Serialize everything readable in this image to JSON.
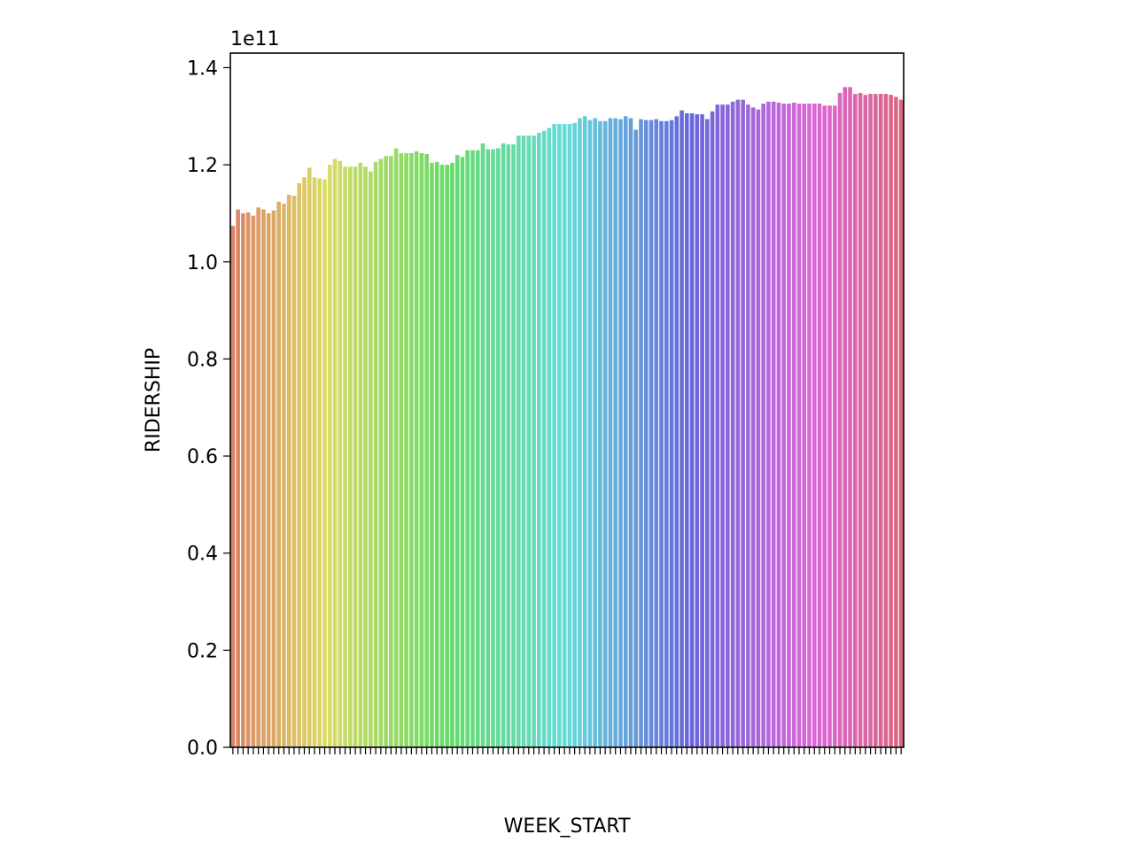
{
  "chart_data": {
    "type": "bar",
    "xlabel": "WEEK_START",
    "ylabel": "RIDERSHIP",
    "offset_text": "1e11",
    "ylim": [
      0,
      1.43
    ],
    "yticks": [
      0.0,
      0.2,
      0.4,
      0.6,
      0.8,
      1.0,
      1.2,
      1.4
    ],
    "ytick_labels": [
      "0.0",
      "0.2",
      "0.4",
      "0.6",
      "0.8",
      "1.0",
      "1.2",
      "1.4"
    ],
    "grid": false,
    "legend": "none",
    "palette": "husl",
    "values": [
      1.074,
      1.108,
      1.1,
      1.102,
      1.095,
      1.112,
      1.108,
      1.1,
      1.106,
      1.124,
      1.12,
      1.138,
      1.136,
      1.162,
      1.174,
      1.194,
      1.174,
      1.172,
      1.17,
      1.2,
      1.212,
      1.208,
      1.196,
      1.196,
      1.196,
      1.204,
      1.196,
      1.186,
      1.206,
      1.212,
      1.218,
      1.218,
      1.234,
      1.224,
      1.224,
      1.224,
      1.228,
      1.224,
      1.222,
      1.204,
      1.206,
      1.2,
      1.2,
      1.204,
      1.22,
      1.216,
      1.23,
      1.23,
      1.23,
      1.244,
      1.232,
      1.232,
      1.234,
      1.244,
      1.242,
      1.242,
      1.26,
      1.26,
      1.26,
      1.26,
      1.266,
      1.27,
      1.276,
      1.284,
      1.284,
      1.284,
      1.284,
      1.286,
      1.296,
      1.3,
      1.292,
      1.296,
      1.29,
      1.29,
      1.296,
      1.296,
      1.294,
      1.3,
      1.296,
      1.272,
      1.294,
      1.292,
      1.292,
      1.294,
      1.29,
      1.29,
      1.292,
      1.3,
      1.312,
      1.306,
      1.306,
      1.304,
      1.304,
      1.294,
      1.31,
      1.324,
      1.324,
      1.324,
      1.33,
      1.334,
      1.334,
      1.324,
      1.318,
      1.314,
      1.326,
      1.33,
      1.33,
      1.328,
      1.326,
      1.326,
      1.328,
      1.326,
      1.326,
      1.326,
      1.326,
      1.326,
      1.322,
      1.322,
      1.322,
      1.348,
      1.36,
      1.36,
      1.346,
      1.348,
      1.344,
      1.346,
      1.346,
      1.346,
      1.346,
      1.344,
      1.34,
      1.334
    ]
  }
}
